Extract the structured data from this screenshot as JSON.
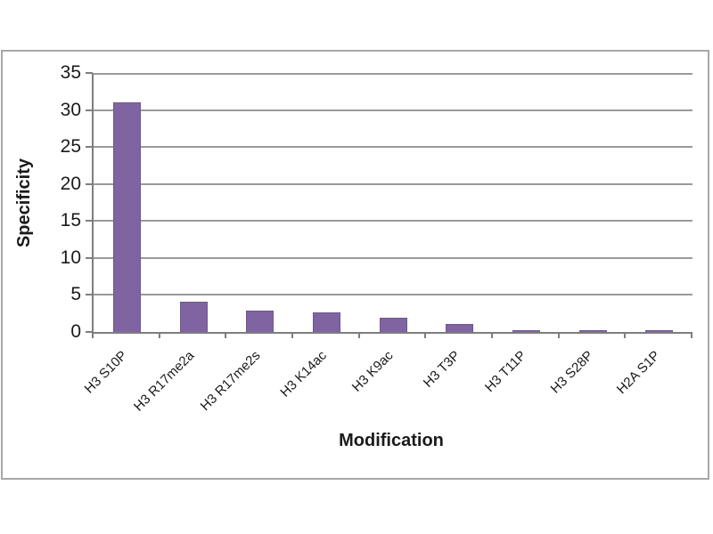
{
  "chart_data": {
    "type": "bar",
    "title": "",
    "categories": [
      "H3 S10P",
      "H3 R17me2a",
      "H3 R17me2s",
      "H3 K14ac",
      "H3 K9ac",
      "H3 T3P",
      "H3 T11P",
      "H3 S28P",
      "H2A S1P"
    ],
    "values": [
      31,
      4.1,
      2.9,
      2.7,
      1.9,
      1.1,
      0.2,
      0.3,
      0.3
    ],
    "xlabel": "Modification",
    "ylabel": "Specificity",
    "ylim": [
      0,
      35
    ],
    "yticks": [
      0,
      5,
      10,
      15,
      20,
      25,
      30,
      35
    ],
    "grid": true,
    "legend": "none",
    "bar_color": "#8064A2",
    "bar_border_color": "#6d578f",
    "grid_color": "#9a9a9a",
    "axis_color": "#7e7e7e",
    "frame_border_color": "#a7a7a7",
    "background_color": "#ffffff"
  }
}
